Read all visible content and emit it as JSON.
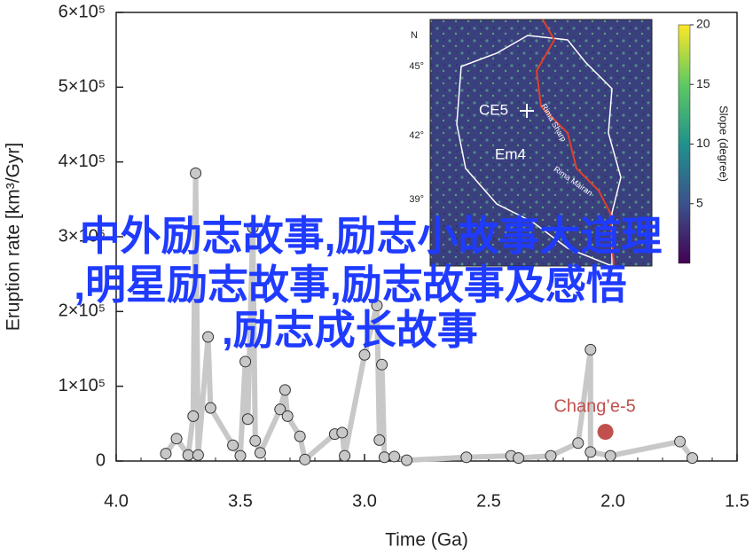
{
  "chart_data": {
    "type": "line",
    "x_label": "Time (Ga)",
    "y_label": "Eruption rate [km³/Gyr]",
    "xlim": [
      4.0,
      1.5
    ],
    "xticks": [
      {
        "value": 4,
        "label": "4.0"
      },
      3.5,
      {
        "value": 3,
        "label": "3.0"
      },
      2.5,
      {
        "value": 2,
        "label": "2.0"
      },
      1.5
    ],
    "ylim": [
      0,
      600000
    ],
    "yticks": [
      0,
      {
        "value": 100000,
        "label": "1×10⁵"
      },
      {
        "value": 200000,
        "label": "2×10⁵"
      },
      {
        "value": 300000,
        "label": "3×10⁵"
      },
      {
        "value": 400000,
        "label": "4×10⁵"
      },
      {
        "value": 500000,
        "label": "5×10⁵"
      },
      {
        "value": 600000,
        "label": "6×10⁵"
      }
    ],
    "x": [
      3.8,
      3.757,
      3.71,
      3.69,
      3.68,
      3.67,
      3.63,
      3.62,
      3.53,
      3.5,
      3.48,
      3.47,
      3.45,
      3.44,
      3.42,
      3.34,
      3.32,
      3.31,
      3.26,
      3.24,
      3.12,
      3.09,
      3.08,
      3.0,
      2.95,
      2.94,
      2.93,
      2.92,
      2.88,
      2.83,
      2.59,
      2.41,
      2.38,
      2.25,
      2.14,
      2.09,
      2.09,
      2.01,
      1.73,
      1.68
    ],
    "series": [
      {
        "color": "#c8c8c8",
        "values": [
          10000,
          30000,
          8000,
          60000,
          385000,
          8000,
          166000,
          71000,
          21000,
          7000,
          133000,
          56000,
          312000,
          27000,
          11000,
          69000,
          95000,
          60000,
          33000,
          2000,
          36000,
          38000,
          7000,
          142000,
          208000,
          28000,
          129000,
          5000,
          6000,
          1000,
          5000,
          7000,
          4000,
          7000,
          24000,
          149000,
          12000,
          7000,
          26000,
          4000
        ]
      }
    ],
    "annotations": [
      {
        "text": "Chang’e-5",
        "x": 2.03,
        "y": 39000,
        "color": "#c0504d"
      }
    ]
  },
  "inset": {
    "north": "N",
    "lat_labels": [
      "45°",
      "42°",
      "39°"
    ],
    "sites": [
      "CE5",
      "Em4"
    ],
    "rilles": [
      "Rima Sharp",
      "Rima Mairan"
    ],
    "colorbar_label": "Slope (degree)",
    "colorbar_lim": [
      0,
      20
    ],
    "colorbar_ticks": [
      5,
      10,
      15,
      20
    ]
  },
  "overlay_text": [
    "中外励志故事,励志小故事大道理",
    ",明星励志故事,励志故事及感悟",
    ",励志成长故事"
  ]
}
